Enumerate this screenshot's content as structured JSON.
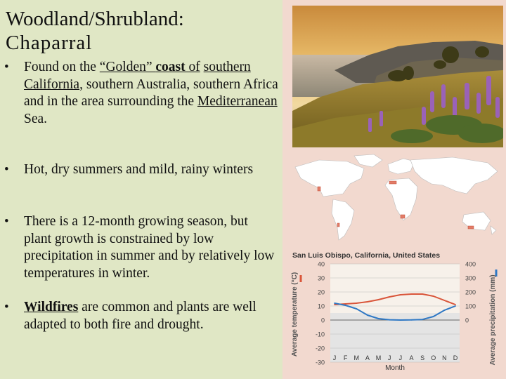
{
  "slide": {
    "title_line1": "Woodland/Shrubland:",
    "title_line2": "Chaparral",
    "bullets": [
      {
        "parts": [
          "Found on the ",
          "“Golden” ",
          "coast ",
          "of",
          " ",
          "southern California",
          ", southern",
          " Australia, southern Africa and in the area surrounding the ",
          "Mediterranean",
          " Sea."
        ]
      },
      {
        "text": "Hot, dry summers and mild, rainy winters"
      },
      {
        "text": "There is a 12-month growing season, but plant growth is constrained by low precipitation in summer and by relatively low temperatures in winter."
      },
      {
        "parts": [
          "Wildfires",
          " are common and plants are well adapted to both fire and drought."
        ]
      }
    ],
    "bullet_char": "•"
  },
  "images": {
    "photo_icon": "coastal-hillside-with-lupine-flowers",
    "map_icon": "world-map-chaparral-distribution"
  },
  "colors": {
    "left_bg": "#e0e7c5",
    "right_bg": "#f2d9cf",
    "temperature_line": "#d9553a",
    "precipitation_line": "#2f78c4"
  },
  "chart_data": {
    "type": "line",
    "title": "San Luis Obispo, California, United States",
    "xlabel": "Month",
    "categories": [
      "J",
      "F",
      "M",
      "A",
      "M",
      "J",
      "J",
      "A",
      "S",
      "O",
      "N",
      "D"
    ],
    "y_left": {
      "label": "Average temperature (°C)",
      "ylim": [
        -30,
        40
      ],
      "ticks": [
        40,
        30,
        20,
        10,
        0,
        -10,
        -20,
        -30
      ]
    },
    "y_right": {
      "label": "Average precipitation (mm)",
      "ylim": [
        -300,
        400
      ],
      "ticks": [
        400,
        300,
        200,
        100,
        0
      ]
    },
    "grid": true,
    "series": [
      {
        "axis": "left",
        "color": "#d9553a",
        "values": [
          11,
          11.5,
          12,
          13,
          14.5,
          16.5,
          18,
          18.5,
          18.5,
          17,
          14,
          11
        ]
      },
      {
        "axis": "right",
        "color": "#2f78c4",
        "values": [
          120,
          105,
          80,
          35,
          10,
          2,
          0,
          1,
          4,
          25,
          70,
          100
        ]
      }
    ]
  }
}
